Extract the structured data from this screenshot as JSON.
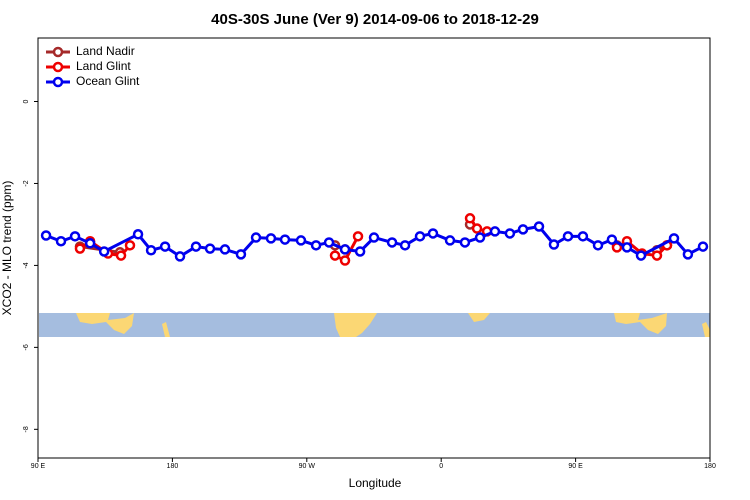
{
  "chart_data": {
    "type": "line",
    "title": "40S-30S June (Ver 9)   2014-09-06 to 2018-12-29",
    "x_label": "Longitude",
    "y_label": "XCO2 - MLO trend (ppm)",
    "xlim": [
      90,
      540
    ],
    "xticks": [
      {
        "value": 90,
        "label": "90 E"
      },
      {
        "value": 180,
        "label": "180"
      },
      {
        "value": 270,
        "label": "90 W"
      },
      {
        "value": 360,
        "label": "0"
      },
      {
        "value": 450,
        "label": "90 E"
      },
      {
        "value": 540,
        "label": "180"
      }
    ],
    "ylim": [
      -8.7,
      1.55
    ],
    "yticks": [
      0,
      -2,
      -4,
      -6,
      -8
    ],
    "legend": "top-left",
    "series": [
      {
        "name": "Land Nadir",
        "color": "#a52a2a",
        "x": [
          118.1,
          144.9,
          null,
          288.9,
          295.6,
          null,
          379.3,
          null,
          477.7,
          null,
          504.5,
          511.2
        ],
        "values": [
          -3.54,
          -3.68,
          null,
          -3.51,
          -3.61,
          null,
          -3.0,
          null,
          -3.51,
          null,
          -3.63,
          -3.51
        ]
      },
      {
        "name": "Land Glint",
        "color": "#ee0000",
        "x": [
          118.1,
          124.9,
          136.9,
          145.6,
          151.6,
          null,
          288.9,
          295.6,
          304.3,
          null,
          379.3,
          384.0,
          390.7,
          null,
          477.7,
          484.4,
          494.5,
          504.5,
          511.2
        ],
        "values": [
          -3.59,
          -3.41,
          -3.71,
          -3.76,
          -3.51,
          null,
          -3.76,
          -3.88,
          -3.29,
          null,
          -2.85,
          -3.1,
          -3.17,
          null,
          -3.56,
          -3.41,
          -3.71,
          -3.76,
          -3.51
        ]
      },
      {
        "name": "Ocean Glint",
        "color": "#0000ee",
        "x": [
          95.4,
          105.4,
          114.8,
          124.9,
          134.3,
          157.0,
          165.7,
          175.1,
          185.1,
          195.8,
          205.2,
          215.2,
          225.9,
          236.0,
          246.0,
          255.4,
          266.1,
          276.2,
          284.9,
          295.6,
          305.7,
          315.0,
          327.1,
          335.8,
          345.8,
          354.5,
          365.9,
          375.9,
          386.0,
          396.0,
          406.0,
          414.8,
          425.5,
          435.5,
          444.9,
          454.9,
          465.0,
          474.3,
          484.4,
          493.8,
          515.9,
          525.2,
          535.3
        ],
        "values": [
          -3.27,
          -3.41,
          -3.29,
          -3.46,
          -3.66,
          -3.24,
          -3.63,
          -3.54,
          -3.78,
          -3.54,
          -3.59,
          -3.61,
          -3.73,
          -3.32,
          -3.34,
          -3.37,
          -3.39,
          -3.51,
          -3.44,
          -3.61,
          -3.66,
          -3.32,
          -3.44,
          -3.51,
          -3.29,
          -3.22,
          -3.39,
          -3.44,
          -3.32,
          -3.17,
          -3.22,
          -3.12,
          -3.05,
          -3.49,
          -3.29,
          -3.29,
          -3.51,
          -3.37,
          -3.56,
          -3.76,
          -3.34,
          -3.73,
          -3.54
        ]
      }
    ]
  }
}
